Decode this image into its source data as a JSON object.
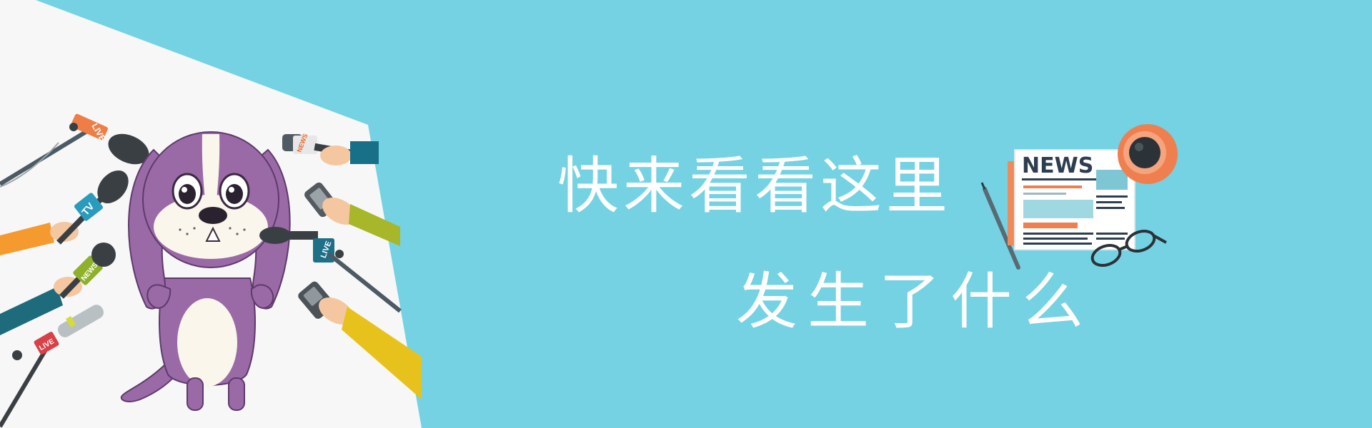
{
  "headline": {
    "line1": "快来看看这里",
    "line2": "发生了什么"
  },
  "newspaper": {
    "masthead": "NEWS"
  },
  "mic_labels": {
    "live_top": "LIVE",
    "news_top": "NEWS",
    "tv": "TV",
    "news_left": "NEWS",
    "live_center": "LIVE",
    "live_bottom": "LIVE"
  },
  "colors": {
    "background": "#74d2e3",
    "stage_panel": "#f7f7f7",
    "dog_body": "#9a6aa6",
    "dog_belly": "#fbf6ec",
    "headline_text": "#ffffff",
    "coffee_cup": "#ef7f4f",
    "newspaper": "#ffffff"
  },
  "icons": [
    "dog-mascot-icon",
    "microphone-icon",
    "recorder-icon",
    "newspaper-icon",
    "coffee-cup-icon",
    "glasses-icon",
    "pencil-icon"
  ]
}
